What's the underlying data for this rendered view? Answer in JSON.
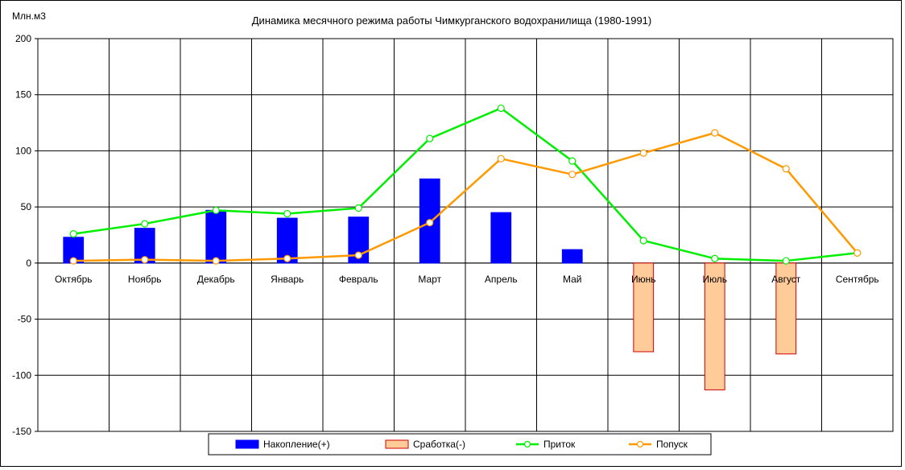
{
  "chart_data": {
    "type": "bar",
    "title": "Динамика месячного режима работы Чимкурганского водохранилища (1980-1991)",
    "ylabel": "Млн.м3",
    "xlabel": "",
    "ylim": [
      -150,
      200
    ],
    "yticks": [
      200,
      150,
      100,
      50,
      0,
      -50,
      -100,
      -150
    ],
    "grid": true,
    "legend_position": "bottom",
    "categories": [
      "Октябрь",
      "Ноябрь",
      "Декабрь",
      "Январь",
      "Февраль",
      "Март",
      "Апрель",
      "Май",
      "Июнь",
      "Июль",
      "Август",
      "Сентябрь"
    ],
    "series": [
      {
        "name": "Накопление(+)",
        "kind": "bar",
        "color": "#0000ff",
        "values": [
          23,
          31,
          47,
          40,
          41,
          75,
          45,
          12,
          0,
          0,
          0,
          0
        ]
      },
      {
        "name": "Сработка(-)",
        "kind": "bar",
        "color": "#ffcc99",
        "stroke": "#cc0000",
        "values": [
          0,
          0,
          0,
          0,
          0,
          0,
          0,
          0,
          -79,
          -113,
          -81,
          0
        ]
      },
      {
        "name": "Приток",
        "kind": "line",
        "color": "#00ee00",
        "values": [
          26,
          35,
          47,
          44,
          49,
          111,
          138,
          91,
          20,
          4,
          2,
          9
        ]
      },
      {
        "name": "Попуск",
        "kind": "line",
        "color": "#ff9900",
        "values": [
          2,
          3,
          2,
          4,
          7,
          36,
          93,
          79,
          98,
          116,
          84,
          9
        ]
      }
    ]
  }
}
